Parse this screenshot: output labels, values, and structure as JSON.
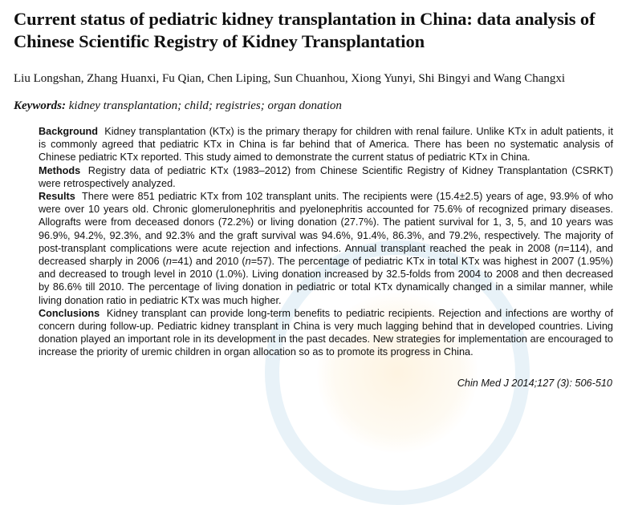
{
  "title": "Current status of pediatric kidney transplantation in China: data analysis of Chinese Scientific Registry of Kidney Transplantation",
  "authors": "Liu Longshan, Zhang Huanxi, Fu Qian, Chen Liping, Sun Chuanhou, Xiong Yunyi, Shi Bingyi and Wang Changxi",
  "keywords": {
    "label": "Keywords:",
    "text": "kidney transplantation; child; registries; organ donation"
  },
  "abstract": {
    "background": {
      "label": "Background",
      "text": "Kidney transplantation (KTx) is the primary therapy for children with renal failure. Unlike KTx in adult patients, it is commonly agreed that pediatric KTx in China is far behind that of America. There has been no systematic analysis of Chinese pediatric KTx reported. This study aimed to demonstrate the current status of pediatric KTx in China."
    },
    "methods": {
      "label": "Methods",
      "text": "Registry data of pediatric KTx (1983–2012) from Chinese Scientific Registry of Kidney Transplantation (CSRKT) were retrospectively analyzed."
    },
    "results": {
      "label": "Results",
      "text_1": "There were 851 pediatric KTx from 102 transplant units. The recipients were (15.4±2.5) years of age, 93.9% of who were over 10 years old. Chronic glomerulonephritis and pyelonephritis accounted for 75.6% of recognized primary diseases. Allografts were from deceased donors (72.2%) or living donation (27.7%). The patient survival for 1, 3, 5, and 10 years was 96.9%, 94.2%, 92.3%, and 92.3% and the graft survival was 94.6%, 91.4%, 86.3%, and 79.2%, respectively. The majority of post-transplant complications were acute rejection and infections. Annual transplant reached the peak in 2008 (",
      "n1": "n",
      "text_2": "=114), and decreased sharply in 2006 (",
      "n2": "n",
      "text_3": "=41) and 2010 (",
      "n3": "n",
      "text_4": "=57). The percentage of pediatric KTx in total KTx was highest in 2007 (1.95%) and decreased to trough level in 2010 (1.0%). Living donation increased by 32.5-folds from 2004 to 2008 and then decreased by 86.6% till 2010. The percentage of living donation in pediatric or total KTx dynamically changed in a similar manner, while living donation ratio in pediatric KTx was much higher."
    },
    "conclusions": {
      "label": "Conclusions",
      "text": "Kidney transplant can provide long-term benefits to pediatric recipients. Rejection and infections are worthy of concern during follow-up. Pediatric kidney transplant in China is very much lagging behind that in developed countries. Living donation played an important role in its development in the past decades. New strategies for implementation are encouraged to increase the priority of uremic children in organ allocation so as to promote its progress in China."
    }
  },
  "citation": "Chin Med J 2014;127 (3): 506-510"
}
